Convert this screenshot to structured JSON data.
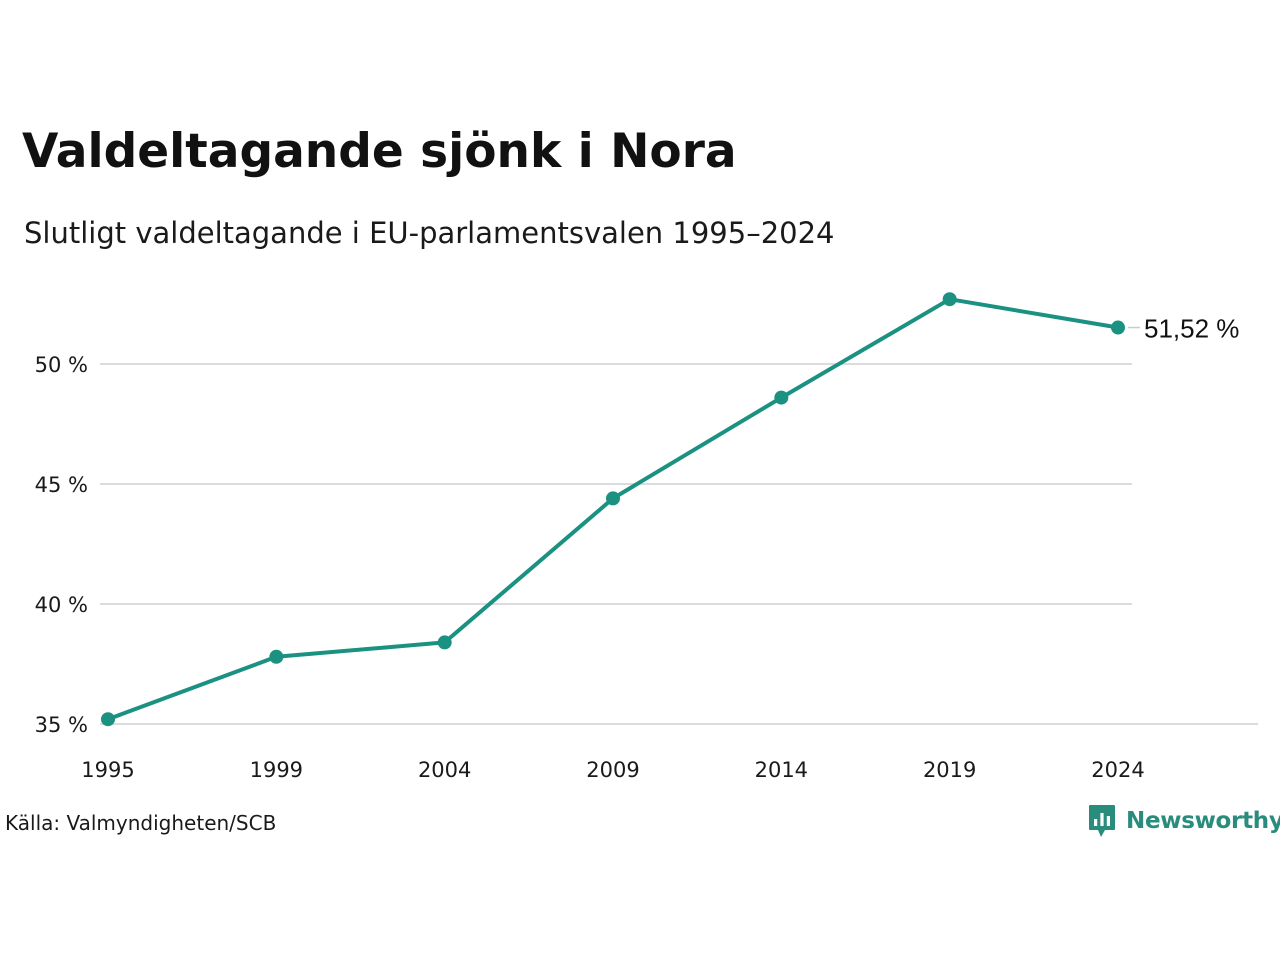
{
  "title": "Valdeltagande sjönk i Nora",
  "subtitle": "Slutligt valdeltagande i EU-parlamentsvalen 1995–2024",
  "source": "Källa: Valmyndigheten/SCB",
  "brand": {
    "name": "Newsworthy",
    "logo_icon": "newsworthy-chart-bubble-icon",
    "color": "#2a8c7d"
  },
  "colors": {
    "line": "#1a9181",
    "grid": "#dcdcdc",
    "text": "#111111"
  },
  "chart_data": {
    "type": "line",
    "x": [
      "1995",
      "1999",
      "2004",
      "2009",
      "2014",
      "2019",
      "2024"
    ],
    "series": [
      {
        "values": [
          35.2,
          37.8,
          38.4,
          44.4,
          48.6,
          52.7,
          51.52
        ]
      }
    ],
    "yticks": [
      35,
      40,
      45,
      50
    ],
    "ytick_labels": [
      "35 %",
      "40 %",
      "45 %",
      "50 %"
    ],
    "ylim": [
      35,
      52.7
    ],
    "end_label": "51,52 %",
    "grid": true,
    "legend": "none",
    "xlabel": "",
    "ylabel": ""
  }
}
